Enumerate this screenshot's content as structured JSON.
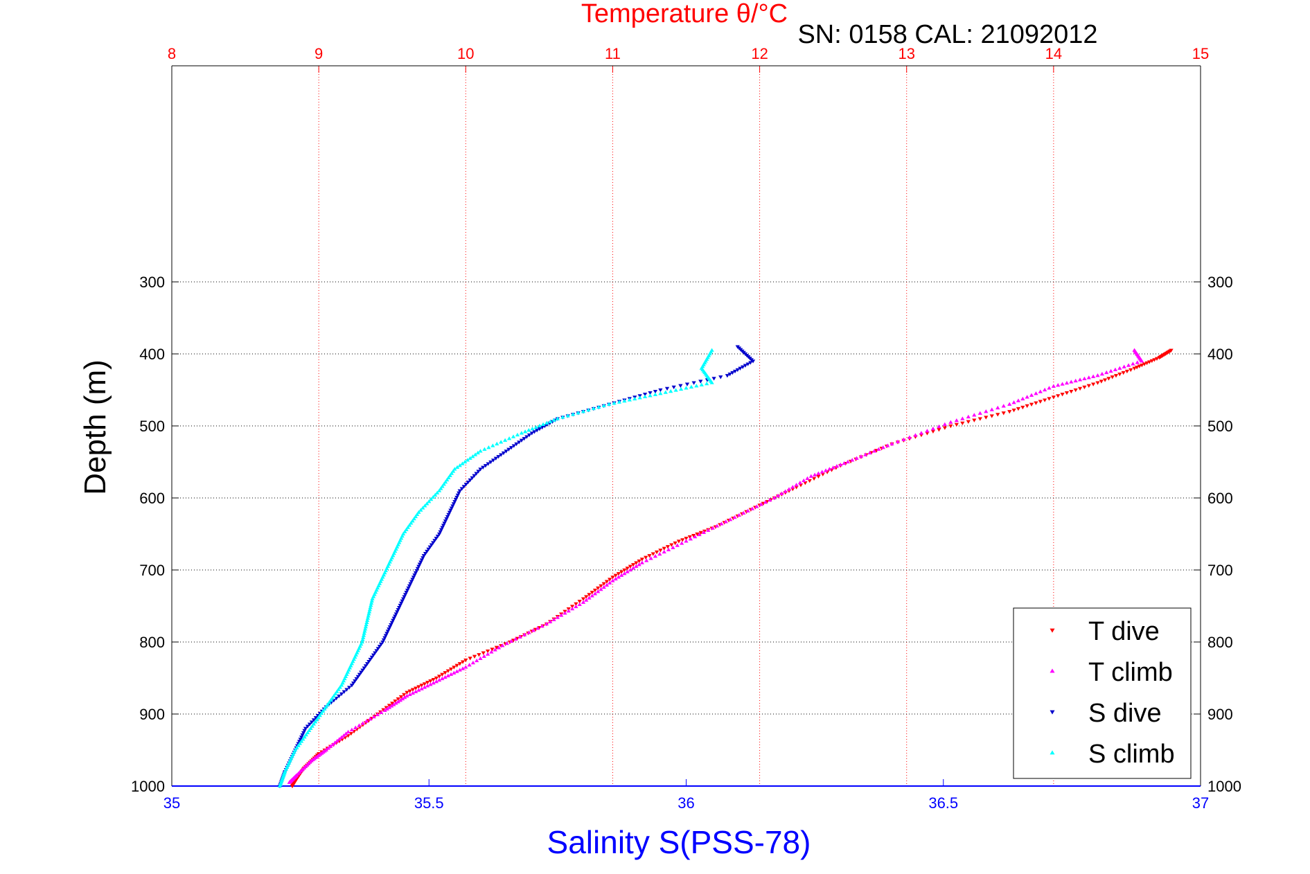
{
  "chart_data": {
    "type": "scatter",
    "title": "Temperature θ/°C",
    "annotation": "SN: 0158  CAL: 21092012",
    "xlabel": "Salinity S(PSS-78)",
    "ylabel": "Depth (m)",
    "x_bottom": {
      "label": "Salinity S(PSS-78)",
      "range": [
        35,
        37
      ],
      "ticks": [
        "35",
        "35.5",
        "36",
        "36.5",
        "37"
      ],
      "color": "#0000ff"
    },
    "x_top": {
      "label": "Temperature θ/°C",
      "range": [
        8,
        15
      ],
      "ticks": [
        "8",
        "9",
        "10",
        "11",
        "12",
        "13",
        "14",
        "15"
      ],
      "color": "#ff0000"
    },
    "y": {
      "label": "Depth (m)",
      "range": [
        0,
        1000
      ],
      "reversed": true,
      "ticks": [
        "300",
        "400",
        "500",
        "600",
        "700",
        "800",
        "900",
        "1000"
      ]
    },
    "grid": true,
    "legend_position": "bottom-right",
    "series": [
      {
        "name": "T dive",
        "axis": "top",
        "color": "#ff0000",
        "marker": "triangle-down",
        "points": [
          [
            14.8,
            395
          ],
          [
            14.72,
            405
          ],
          [
            14.55,
            420
          ],
          [
            14.3,
            440
          ],
          [
            14.0,
            460
          ],
          [
            13.7,
            480
          ],
          [
            13.3,
            500
          ],
          [
            12.9,
            525
          ],
          [
            12.55,
            555
          ],
          [
            12.25,
            585
          ],
          [
            12.0,
            610
          ],
          [
            11.7,
            640
          ],
          [
            11.45,
            660
          ],
          [
            11.2,
            685
          ],
          [
            11.0,
            710
          ],
          [
            10.8,
            740
          ],
          [
            10.55,
            775
          ],
          [
            10.3,
            800
          ],
          [
            10.0,
            825
          ],
          [
            9.8,
            850
          ],
          [
            9.6,
            870
          ],
          [
            9.4,
            900
          ],
          [
            9.2,
            930
          ],
          [
            9.0,
            955
          ],
          [
            8.9,
            975
          ],
          [
            8.85,
            990
          ],
          [
            8.82,
            1000
          ]
        ]
      },
      {
        "name": "T climb",
        "axis": "top",
        "color": "#ff00ff",
        "marker": "triangle-up",
        "points": [
          [
            14.55,
            395
          ],
          [
            14.6,
            410
          ],
          [
            14.3,
            430
          ],
          [
            14.0,
            445
          ],
          [
            13.7,
            470
          ],
          [
            13.3,
            495
          ],
          [
            12.9,
            525
          ],
          [
            12.6,
            550
          ],
          [
            12.35,
            570
          ],
          [
            12.1,
            600
          ],
          [
            11.8,
            630
          ],
          [
            11.5,
            660
          ],
          [
            11.2,
            690
          ],
          [
            11.0,
            715
          ],
          [
            10.8,
            745
          ],
          [
            10.55,
            775
          ],
          [
            10.25,
            805
          ],
          [
            10.0,
            835
          ],
          [
            9.8,
            855
          ],
          [
            9.6,
            875
          ],
          [
            9.45,
            895
          ],
          [
            9.2,
            925
          ],
          [
            9.05,
            950
          ],
          [
            8.95,
            965
          ],
          [
            8.85,
            985
          ],
          [
            8.8,
            995
          ]
        ]
      },
      {
        "name": "S dive",
        "axis": "bottom",
        "color": "#0000cc",
        "marker": "triangle-down",
        "points": [
          [
            36.1,
            390
          ],
          [
            36.13,
            410
          ],
          [
            36.08,
            430
          ],
          [
            35.95,
            450
          ],
          [
            35.85,
            470
          ],
          [
            35.75,
            490
          ],
          [
            35.7,
            510
          ],
          [
            35.65,
            535
          ],
          [
            35.6,
            560
          ],
          [
            35.56,
            590
          ],
          [
            35.54,
            620
          ],
          [
            35.52,
            650
          ],
          [
            35.49,
            680
          ],
          [
            35.47,
            710
          ],
          [
            35.45,
            740
          ],
          [
            35.43,
            770
          ],
          [
            35.41,
            800
          ],
          [
            35.38,
            830
          ],
          [
            35.35,
            860
          ],
          [
            35.3,
            890
          ],
          [
            35.26,
            920
          ],
          [
            35.24,
            950
          ],
          [
            35.22,
            980
          ],
          [
            35.21,
            1000
          ]
        ]
      },
      {
        "name": "S climb",
        "axis": "bottom",
        "color": "#00ffff",
        "marker": "triangle-up",
        "points": [
          [
            36.05,
            395
          ],
          [
            36.03,
            420
          ],
          [
            36.05,
            440
          ],
          [
            35.95,
            455
          ],
          [
            35.85,
            470
          ],
          [
            35.75,
            490
          ],
          [
            35.68,
            510
          ],
          [
            35.6,
            535
          ],
          [
            35.55,
            560
          ],
          [
            35.52,
            590
          ],
          [
            35.48,
            620
          ],
          [
            35.45,
            650
          ],
          [
            35.43,
            680
          ],
          [
            35.41,
            710
          ],
          [
            35.39,
            740
          ],
          [
            35.38,
            770
          ],
          [
            35.37,
            800
          ],
          [
            35.35,
            830
          ],
          [
            35.33,
            860
          ],
          [
            35.3,
            890
          ],
          [
            35.27,
            920
          ],
          [
            35.24,
            950
          ],
          [
            35.22,
            980
          ],
          [
            35.21,
            1000
          ]
        ]
      }
    ]
  }
}
